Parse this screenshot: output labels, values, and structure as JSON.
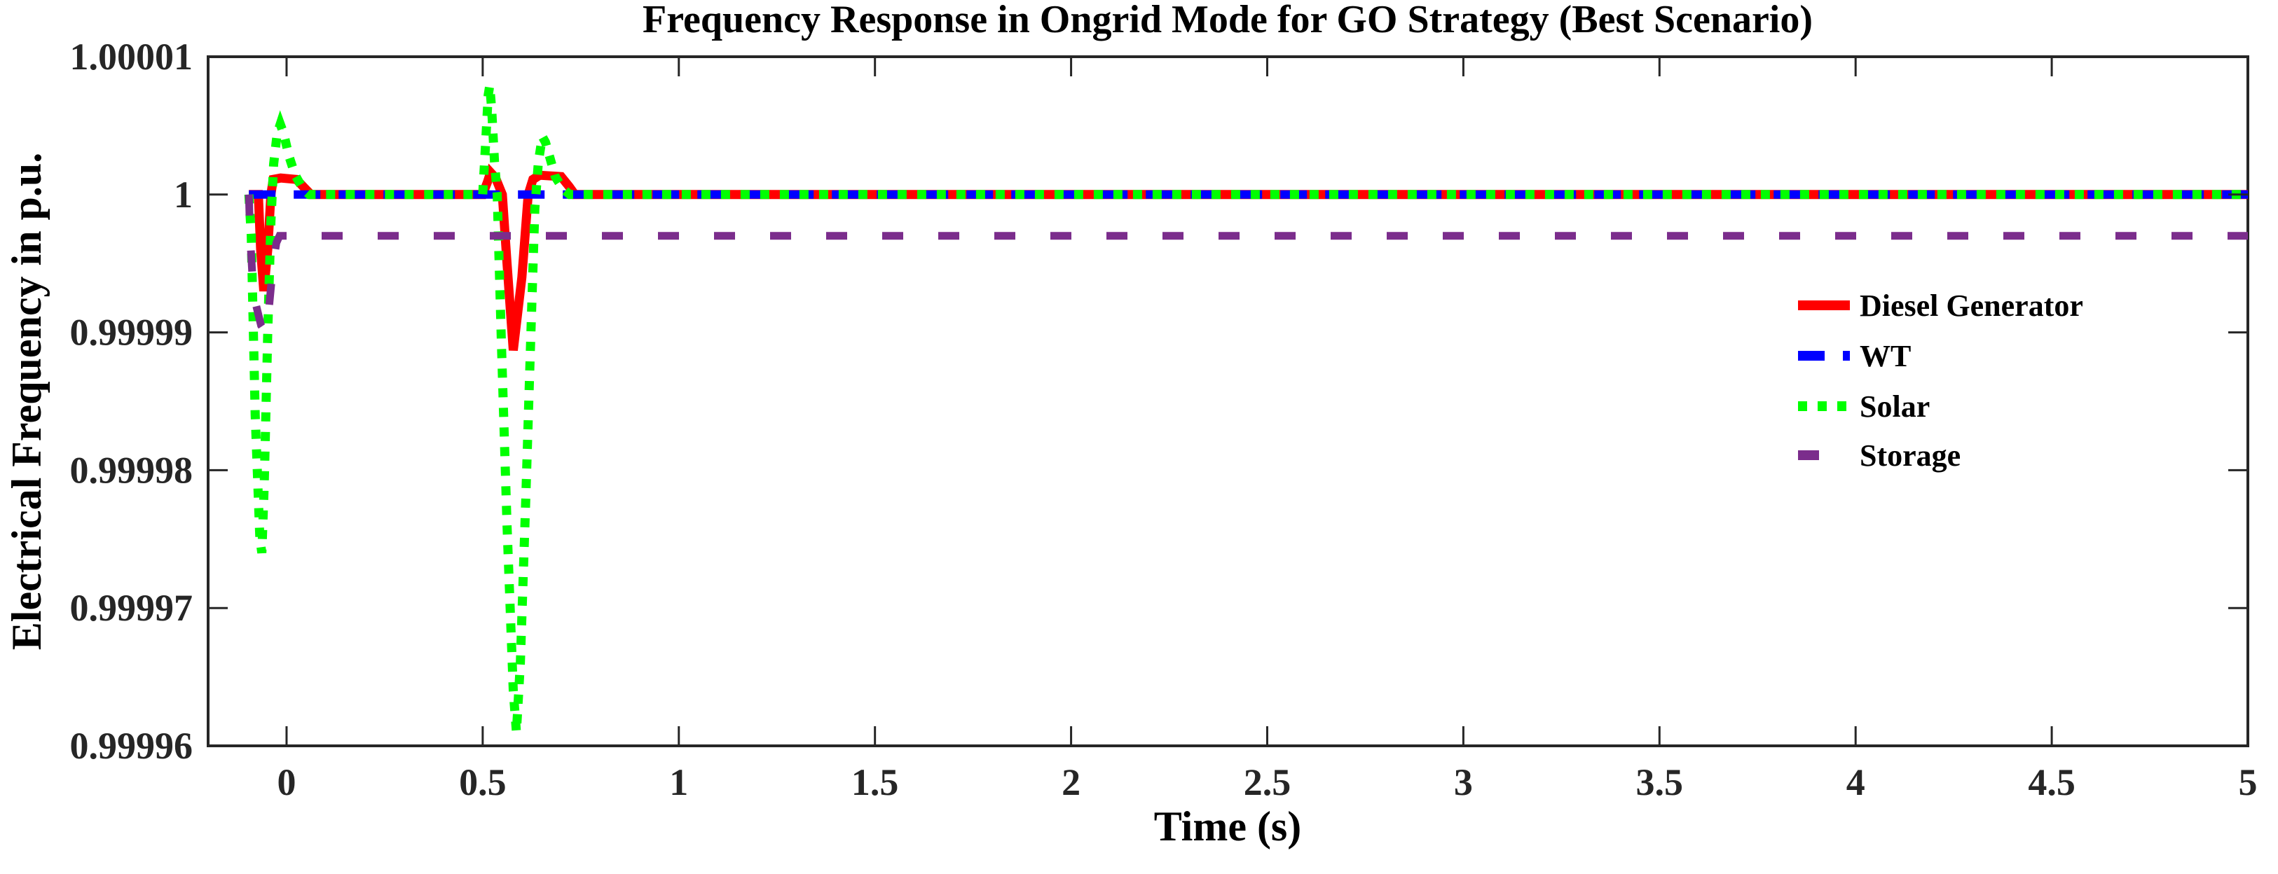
{
  "figure": {
    "background": "#ffffff",
    "axis_color": "#262626",
    "text_color": "#000000"
  },
  "chart_data": {
    "type": "line",
    "title": "Frequency Response in Ongrid Mode for GO Strategy (Best Scenario)",
    "xlabel": "Time (s)",
    "ylabel": "Electrical Frequency in p.u.",
    "xlim": [
      -0.2,
      5
    ],
    "ylim": [
      0.99996,
      1.00001
    ],
    "grid": false,
    "legend_position": "right-center",
    "xticks": {
      "values": [
        0,
        0.5,
        1,
        1.5,
        2,
        2.5,
        3,
        3.5,
        4,
        4.5,
        5
      ],
      "labels": [
        "0",
        "0.5",
        "1",
        "1.5",
        "2",
        "2.5",
        "3",
        "3.5",
        "4",
        "4.5",
        "5"
      ]
    },
    "yticks": {
      "values": [
        0.99996,
        0.99997,
        0.99998,
        0.99999,
        1.0,
        1.00001
      ],
      "labels": [
        "0.99996",
        "0.99997",
        "0.99998",
        "0.99999",
        "1",
        "1.00001"
      ]
    },
    "series": [
      {
        "name": "Diesel Generator",
        "id": "diesel-generator",
        "color": "#ff0000",
        "style": "solid",
        "width": 13,
        "points": [
          [
            -0.096,
            1
          ],
          [
            -0.072,
            1
          ],
          [
            -0.066,
            0.999996
          ],
          [
            -0.058,
            0.999993
          ],
          [
            -0.048,
            0.999996
          ],
          [
            -0.04,
            1.0
          ],
          [
            -0.034,
            1.0000011
          ],
          [
            -0.015,
            1.0000012
          ],
          [
            0.025,
            1.0000011
          ],
          [
            0.045,
            1.0000005
          ],
          [
            0.062,
            1.0
          ],
          [
            0.5,
            1.0
          ],
          [
            0.512,
            1.0000009
          ],
          [
            0.52,
            1.0000016
          ],
          [
            0.533,
            1.0000012
          ],
          [
            0.55,
            1.0
          ],
          [
            0.562,
            0.999995
          ],
          [
            0.578,
            0.9999887
          ],
          [
            0.6,
            0.999994
          ],
          [
            0.616,
            1.0
          ],
          [
            0.628,
            1.0000011
          ],
          [
            0.645,
            1.0000014
          ],
          [
            0.7,
            1.0000013
          ],
          [
            0.72,
            1.0000006
          ],
          [
            0.735,
            1.0
          ],
          [
            5,
            1.0
          ]
        ]
      },
      {
        "name": "WT",
        "id": "wt",
        "color": "#0000ff",
        "style": "dashed",
        "width": 12,
        "points": [
          [
            -0.096,
            1
          ],
          [
            5,
            1
          ]
        ]
      },
      {
        "name": "Solar",
        "id": "solar",
        "color": "#00ff00",
        "style": "dotted",
        "width": 13,
        "points": [
          [
            -0.096,
            1
          ],
          [
            -0.09,
            0.999997
          ],
          [
            -0.08,
            0.999984
          ],
          [
            -0.068,
            0.999975
          ],
          [
            -0.063,
            0.999974
          ],
          [
            -0.057,
            0.999979
          ],
          [
            -0.048,
            0.99999
          ],
          [
            -0.04,
            0.999998
          ],
          [
            -0.033,
            1.0000022
          ],
          [
            -0.024,
            1.0000044
          ],
          [
            -0.016,
            1.0000051
          ],
          [
            -0.007,
            1.0000044
          ],
          [
            0.006,
            1.0000028
          ],
          [
            0.022,
            1.0000014
          ],
          [
            0.042,
            1.0000004
          ],
          [
            0.058,
            1.0
          ],
          [
            0.5,
            1.0
          ],
          [
            0.507,
            1.0000035
          ],
          [
            0.514,
            1.0000072
          ],
          [
            0.518,
            1.0000079
          ],
          [
            0.523,
            1.0000062
          ],
          [
            0.53,
            1.0000024
          ],
          [
            0.537,
            1.0
          ],
          [
            0.548,
            0.999989
          ],
          [
            0.562,
            0.999976
          ],
          [
            0.578,
            0.999964
          ],
          [
            0.586,
            0.999961
          ],
          [
            0.596,
            0.999966
          ],
          [
            0.61,
            0.999978
          ],
          [
            0.623,
            0.99999
          ],
          [
            0.633,
            0.999999
          ],
          [
            0.642,
            1.0000024
          ],
          [
            0.652,
            1.0000042
          ],
          [
            0.66,
            1.0000038
          ],
          [
            0.672,
            1.0000026
          ],
          [
            0.685,
            1.0000013
          ],
          [
            0.705,
            1.0000004
          ],
          [
            0.722,
            1.0
          ],
          [
            5,
            1.0
          ]
        ]
      },
      {
        "name": "Storage",
        "id": "storage",
        "color": "#7b2d8c",
        "style": "longdash",
        "width": 11,
        "points": [
          [
            -0.096,
            1
          ],
          [
            -0.093,
            0.999997
          ],
          [
            -0.087,
            0.999994
          ],
          [
            -0.078,
            0.999992
          ],
          [
            -0.065,
            0.9999905
          ],
          [
            -0.053,
            0.99999
          ],
          [
            -0.044,
            0.999992
          ],
          [
            -0.034,
            0.999995
          ],
          [
            -0.026,
            0.9999965
          ],
          [
            -0.018,
            0.999997
          ],
          [
            5,
            0.999997
          ]
        ]
      }
    ]
  }
}
